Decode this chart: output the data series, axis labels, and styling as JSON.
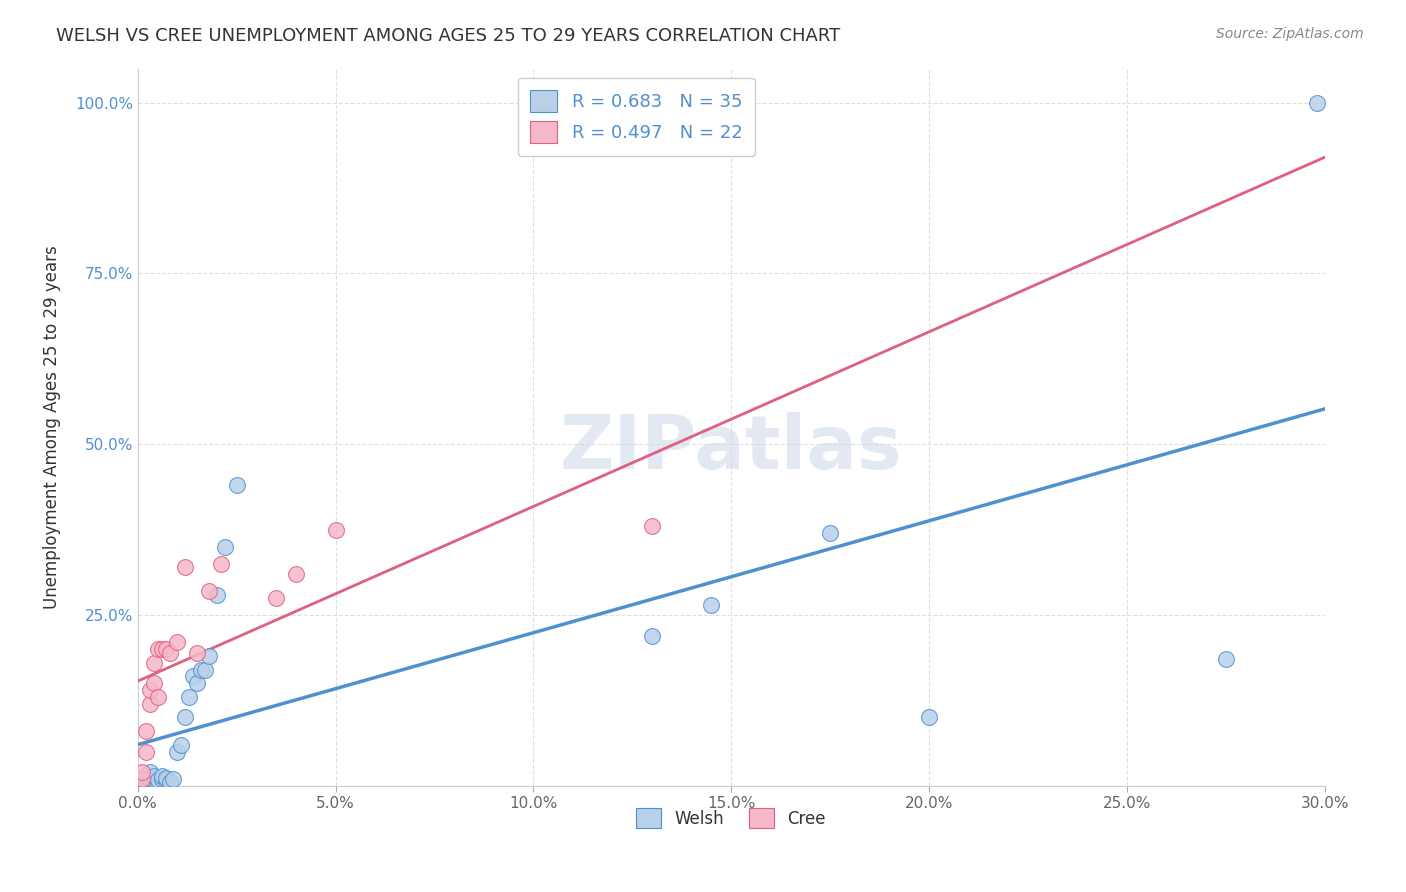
{
  "title": "WELSH VS CREE UNEMPLOYMENT AMONG AGES 25 TO 29 YEARS CORRELATION CHART",
  "source": "Source: ZipAtlas.com",
  "ylabel_label": "Unemployment Among Ages 25 to 29 years",
  "welsh_R": "0.683",
  "welsh_N": "35",
  "cree_R": "0.497",
  "cree_N": "22",
  "welsh_color": "#b8d0ea",
  "cree_color": "#f5b8c8",
  "welsh_line_color": "#5090d0",
  "cree_line_color": "#e06080",
  "legend_label_welsh": "Welsh",
  "legend_label_cree": "Cree",
  "watermark": "ZIPatlas",
  "welsh_scatter_x": [
    0.001,
    0.001,
    0.002,
    0.002,
    0.003,
    0.003,
    0.003,
    0.004,
    0.004,
    0.005,
    0.005,
    0.006,
    0.006,
    0.007,
    0.007,
    0.008,
    0.009,
    0.01,
    0.011,
    0.012,
    0.013,
    0.014,
    0.015,
    0.016,
    0.017,
    0.018,
    0.02,
    0.022,
    0.025,
    0.13,
    0.145,
    0.175,
    0.2,
    0.275,
    0.298
  ],
  "welsh_scatter_y": [
    0.005,
    0.01,
    0.005,
    0.015,
    0.005,
    0.01,
    0.02,
    0.008,
    0.015,
    0.003,
    0.008,
    0.01,
    0.015,
    0.008,
    0.012,
    0.005,
    0.01,
    0.05,
    0.06,
    0.1,
    0.13,
    0.16,
    0.15,
    0.17,
    0.17,
    0.19,
    0.28,
    0.35,
    0.44,
    0.22,
    0.265,
    0.37,
    0.1,
    0.185,
    1.0
  ],
  "cree_scatter_x": [
    0.001,
    0.001,
    0.002,
    0.002,
    0.003,
    0.003,
    0.004,
    0.004,
    0.005,
    0.005,
    0.006,
    0.007,
    0.008,
    0.01,
    0.012,
    0.015,
    0.018,
    0.021,
    0.035,
    0.04,
    0.05,
    0.13
  ],
  "cree_scatter_y": [
    0.01,
    0.02,
    0.05,
    0.08,
    0.12,
    0.14,
    0.15,
    0.18,
    0.13,
    0.2,
    0.2,
    0.2,
    0.195,
    0.21,
    0.32,
    0.195,
    0.285,
    0.325,
    0.275,
    0.31,
    0.375,
    0.38
  ],
  "xlim": [
    0.0,
    0.3
  ],
  "ylim": [
    0.0,
    1.05
  ],
  "xticks": [
    0.0,
    0.05,
    0.1,
    0.15,
    0.2,
    0.25,
    0.3
  ],
  "yticks": [
    0.0,
    0.25,
    0.5,
    0.75,
    1.0
  ],
  "background_color": "#ffffff",
  "grid_color": "#dddddd"
}
